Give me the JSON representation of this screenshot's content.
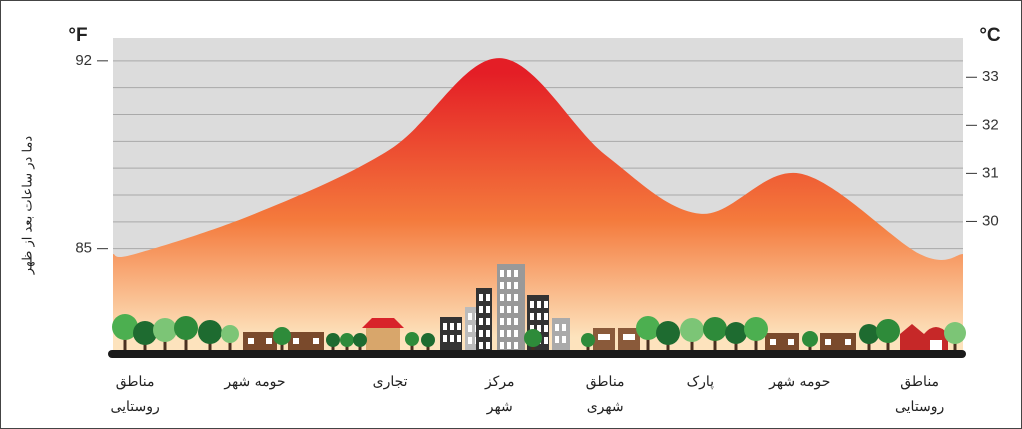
{
  "chart_data": {
    "type": "area",
    "y_unit": "°F",
    "y2_unit": "°C",
    "ylabel": "دما در ساعات بعد از ظهر",
    "categories": [
      [
        "مناطق",
        "روستایی"
      ],
      [
        "حومه شهر"
      ],
      [
        "تجاری"
      ],
      [
        "مرکز",
        "شهر"
      ],
      [
        "مناطق",
        "شهری"
      ],
      [
        "پارک"
      ],
      [
        "حومه شهر"
      ],
      [
        "مناطق",
        "روستایی"
      ]
    ],
    "values": [
      84.8,
      86.3,
      88.7,
      92.1,
      88.5,
      86.3,
      87.8,
      84.8
    ],
    "ylim": [
      81,
      93
    ],
    "yticks": [
      85,
      92
    ],
    "ygrid": [
      82,
      83,
      84,
      85,
      86,
      87,
      88,
      89,
      90,
      91,
      92
    ],
    "y2lim": [
      27.2,
      33.9
    ],
    "y2ticks": [
      30,
      31,
      32,
      33
    ],
    "colors": [
      "#e41e26",
      "#f47a3c",
      "#fde3bd"
    ],
    "grid": true
  }
}
